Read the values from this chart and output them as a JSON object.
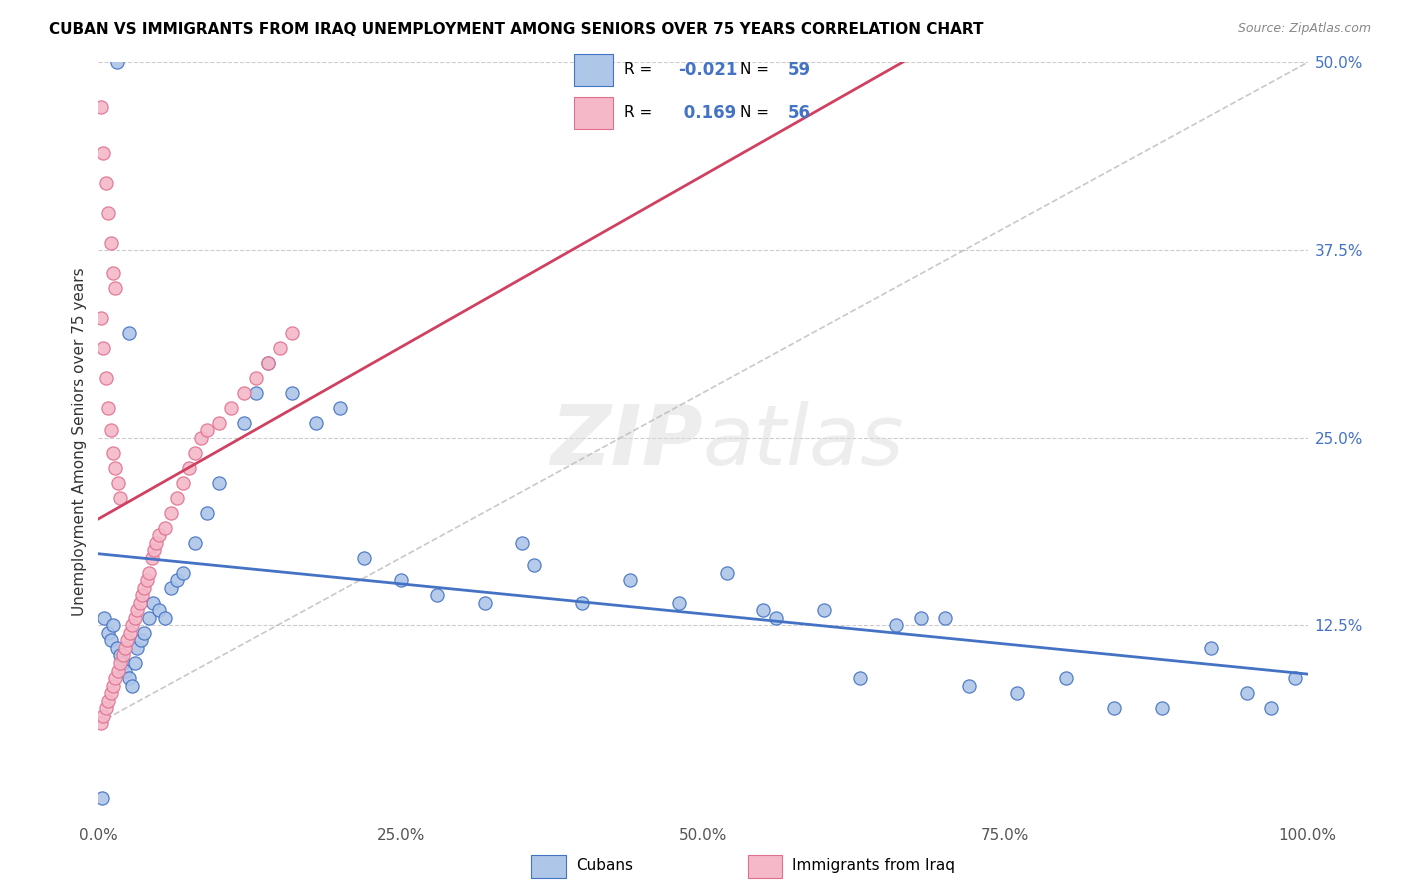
{
  "title": "CUBAN VS IMMIGRANTS FROM IRAQ UNEMPLOYMENT AMONG SENIORS OVER 75 YEARS CORRELATION CHART",
  "source": "Source: ZipAtlas.com",
  "ylabel": "Unemployment Among Seniors over 75 years",
  "xlim": [
    0,
    1.0
  ],
  "ylim": [
    -0.005,
    0.5
  ],
  "cubans_color": "#aec6e8",
  "iraq_color": "#f4b8c8",
  "cubans_edge": "#4472c4",
  "iraq_edge": "#e07090",
  "cubans_line_color": "#4472c4",
  "iraq_line_color": "#d04060",
  "watermark": "ZIPatlas",
  "cubans_x": [
    0.005,
    0.008,
    0.01,
    0.012,
    0.015,
    0.018,
    0.02,
    0.022,
    0.025,
    0.028,
    0.03,
    0.032,
    0.035,
    0.038,
    0.042,
    0.045,
    0.05,
    0.055,
    0.06,
    0.065,
    0.07,
    0.08,
    0.09,
    0.1,
    0.12,
    0.13,
    0.14,
    0.16,
    0.18,
    0.2,
    0.22,
    0.25,
    0.28,
    0.32,
    0.36,
    0.4,
    0.44,
    0.48,
    0.52,
    0.56,
    0.6,
    0.63,
    0.66,
    0.68,
    0.72,
    0.76,
    0.8,
    0.84,
    0.88,
    0.92,
    0.95,
    0.97,
    0.99,
    0.35,
    0.55,
    0.7,
    0.015,
    0.025,
    0.003
  ],
  "cubans_y": [
    0.13,
    0.12,
    0.115,
    0.125,
    0.11,
    0.105,
    0.1,
    0.095,
    0.09,
    0.085,
    0.1,
    0.11,
    0.115,
    0.12,
    0.13,
    0.14,
    0.135,
    0.13,
    0.15,
    0.155,
    0.16,
    0.18,
    0.2,
    0.22,
    0.26,
    0.28,
    0.3,
    0.28,
    0.26,
    0.27,
    0.17,
    0.155,
    0.145,
    0.14,
    0.165,
    0.14,
    0.155,
    0.14,
    0.16,
    0.13,
    0.135,
    0.09,
    0.125,
    0.13,
    0.085,
    0.08,
    0.09,
    0.07,
    0.07,
    0.11,
    0.08,
    0.07,
    0.09,
    0.18,
    0.135,
    0.13,
    0.5,
    0.32,
    0.01
  ],
  "iraq_x": [
    0.002,
    0.004,
    0.006,
    0.008,
    0.01,
    0.012,
    0.014,
    0.016,
    0.018,
    0.02,
    0.022,
    0.024,
    0.026,
    0.028,
    0.03,
    0.032,
    0.034,
    0.036,
    0.038,
    0.04,
    0.042,
    0.044,
    0.046,
    0.048,
    0.05,
    0.055,
    0.06,
    0.065,
    0.07,
    0.075,
    0.08,
    0.085,
    0.09,
    0.1,
    0.11,
    0.12,
    0.13,
    0.14,
    0.15,
    0.16,
    0.002,
    0.004,
    0.006,
    0.008,
    0.01,
    0.012,
    0.014,
    0.002,
    0.004,
    0.006,
    0.008,
    0.01,
    0.012,
    0.014,
    0.016,
    0.018
  ],
  "iraq_y": [
    0.06,
    0.065,
    0.07,
    0.075,
    0.08,
    0.085,
    0.09,
    0.095,
    0.1,
    0.105,
    0.11,
    0.115,
    0.12,
    0.125,
    0.13,
    0.135,
    0.14,
    0.145,
    0.15,
    0.155,
    0.16,
    0.17,
    0.175,
    0.18,
    0.185,
    0.19,
    0.2,
    0.21,
    0.22,
    0.23,
    0.24,
    0.25,
    0.255,
    0.26,
    0.27,
    0.28,
    0.29,
    0.3,
    0.31,
    0.32,
    0.47,
    0.44,
    0.42,
    0.4,
    0.38,
    0.36,
    0.35,
    0.33,
    0.31,
    0.29,
    0.27,
    0.255,
    0.24,
    0.23,
    0.22,
    0.21
  ]
}
